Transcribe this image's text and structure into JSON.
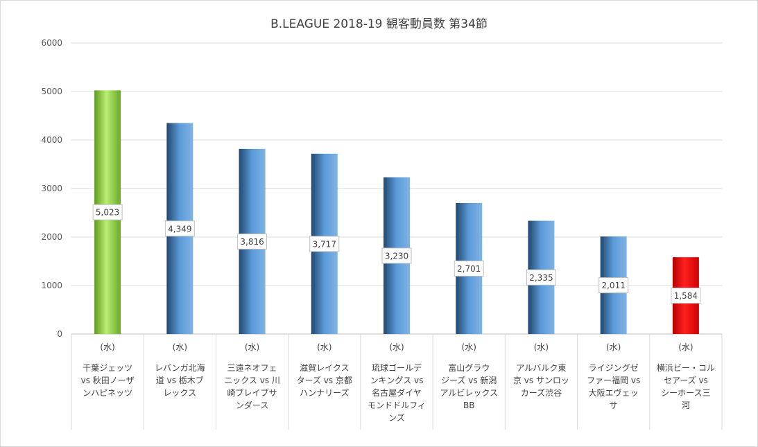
{
  "chart_data": {
    "type": "bar",
    "title": "B.LEAGUE 2018-19 観客動員数 第34節",
    "ylim": [
      0,
      6000
    ],
    "yticks": [
      0,
      1000,
      2000,
      3000,
      4000,
      5000,
      6000
    ],
    "grid": true,
    "categories": [
      {
        "day": "(水)",
        "lines": [
          "千葉ジェッツ",
          "vs 秋田ノーザ",
          "ンハピネッツ"
        ]
      },
      {
        "day": "(水)",
        "lines": [
          "レバンガ北海",
          "道 vs 栃木ブ",
          "レックス"
        ]
      },
      {
        "day": "(水)",
        "lines": [
          "三遠ネオフェ",
          "ニックス vs 川",
          "崎ブレイブサ",
          "ンダース"
        ]
      },
      {
        "day": "(水)",
        "lines": [
          "滋賀レイクス",
          "ターズ vs 京都",
          "ハンナリーズ"
        ]
      },
      {
        "day": "(水)",
        "lines": [
          "琉球ゴールデ",
          "ンキングス vs",
          "名古屋ダイヤ",
          "モンドドルフィ",
          "ンズ"
        ]
      },
      {
        "day": "(水)",
        "lines": [
          "富山グラウ",
          "ジーズ vs 新潟",
          "アルビレックス",
          "BB"
        ]
      },
      {
        "day": "(水)",
        "lines": [
          "アルバルク東",
          "京 vs サンロッ",
          "カーズ渋谷"
        ]
      },
      {
        "day": "(水)",
        "lines": [
          "ライジングゼ",
          "ファー福岡 vs",
          "大阪エヴェッ",
          "サ"
        ]
      },
      {
        "day": "(水)",
        "lines": [
          "横浜ビー・コル",
          "セアーズ vs",
          "シーホース三",
          "河"
        ]
      }
    ],
    "values": [
      5023,
      4349,
      3816,
      3717,
      3230,
      2701,
      2335,
      2011,
      1584
    ],
    "data_labels": [
      "5,023",
      "4,349",
      "3,816",
      "3,717",
      "3,230",
      "2,701",
      "2,335",
      "2,011",
      "1,584"
    ],
    "bar_colors": [
      "#8fce3a",
      "#4f8fd0",
      "#4f8fd0",
      "#4f8fd0",
      "#4f8fd0",
      "#4f8fd0",
      "#4f8fd0",
      "#4f8fd0",
      "#ee0000"
    ]
  }
}
